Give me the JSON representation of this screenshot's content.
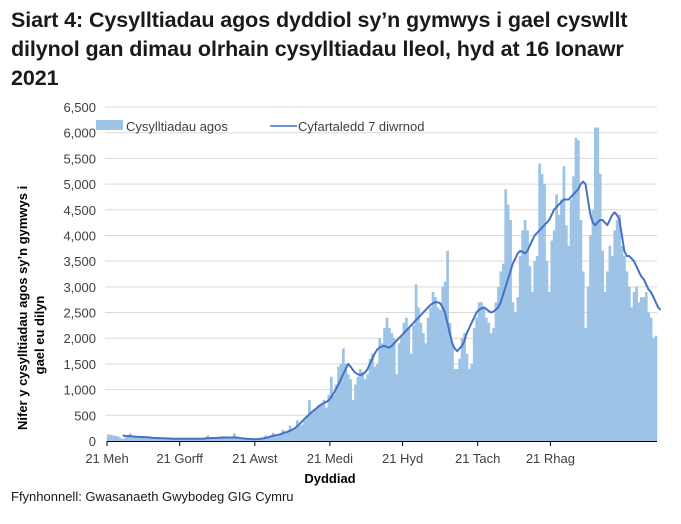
{
  "title": "Siart 4: Cysylltiadau agos dyddiol sy’n gymwys i gael cyswllt dilynol gan dimau olrhain cysylltiadau lleol, hyd at 16 Ionawr 2021",
  "source": "Ffynhonnell: Gwasanaeth Gwybodeg GIG Cymru",
  "colors": {
    "bars": "#9dc3e6",
    "line": "#4472c4",
    "grid": "#d9d9d9",
    "axis": "#000000"
  },
  "chart_data": {
    "type": "bar",
    "title": "Siart 4: Cysylltiadau agos dyddiol sy’n gymwys i gael cyswllt dilynol gan dimau olrhain cysylltiadau lleol, hyd at 16 Ionawr 2021",
    "xlabel": "Dyddiad",
    "ylabel": "Nifer y cysylltiadau agos sy’n gymwys i gael eu dilyn",
    "ylim": [
      0,
      6500
    ],
    "yticks": [
      0,
      500,
      1000,
      1500,
      2000,
      2500,
      3000,
      3500,
      4000,
      4500,
      5000,
      5500,
      6000,
      6500
    ],
    "ytick_labels": [
      "0",
      "500",
      "1,000",
      "1,500",
      "2,000",
      "2,500",
      "3,000",
      "3,500",
      "4,000",
      "4,500",
      "5,000",
      "5,500",
      "6,000",
      "6,500"
    ],
    "xtick_labels": [
      "21 Meh",
      "21 Gorff",
      "21 Awst",
      "21 Medi",
      "21 Hyd",
      "21 Tach",
      "21 Rhag"
    ],
    "xtick_day_index": [
      0,
      30,
      61,
      92,
      122,
      153,
      183
    ],
    "x_start": "21 Meh 2020",
    "x_end": "16 Ion 2021",
    "grid": true,
    "legend_position": "top",
    "legend": [
      "Cysylltiadau agos",
      "Cyfartaledd 7 diwrnod"
    ],
    "series": [
      {
        "name": "Cysylltiadau agos",
        "type": "bar",
        "values": [
          130,
          120,
          110,
          100,
          90,
          60,
          40,
          70,
          80,
          150,
          90,
          80,
          70,
          75,
          80,
          70,
          70,
          60,
          50,
          60,
          55,
          50,
          50,
          45,
          50,
          45,
          45,
          40,
          45,
          40,
          40,
          40,
          45,
          40,
          45,
          40,
          40,
          45,
          40,
          50,
          45,
          110,
          60,
          50,
          50,
          50,
          70,
          90,
          60,
          50,
          50,
          80,
          150,
          60,
          45,
          40,
          40,
          35,
          30,
          30,
          30,
          30,
          40,
          45,
          60,
          110,
          80,
          90,
          160,
          110,
          100,
          140,
          220,
          150,
          180,
          300,
          200,
          250,
          400,
          300,
          320,
          400,
          500,
          800,
          550,
          600,
          650,
          700,
          700,
          800,
          650,
          900,
          1250,
          900,
          1100,
          1450,
          1500,
          1800,
          1500,
          1300,
          1200,
          800,
          1100,
          1250,
          1400,
          1350,
          1200,
          1300,
          1600,
          1700,
          1450,
          1500,
          2000,
          1900,
          2200,
          2400,
          2200,
          2100,
          2000,
          1300,
          1900,
          2050,
          2300,
          2400,
          2200,
          1700,
          2250,
          3050,
          2600,
          2300,
          2100,
          1900,
          2400,
          2600,
          2900,
          2800,
          2600,
          2550,
          3000,
          3100,
          3700,
          2300,
          1900,
          1400,
          1400,
          1600,
          2000,
          2100,
          1700,
          1400,
          1500,
          2200,
          2400,
          2700,
          2700,
          2600,
          2400,
          2300,
          2100,
          2200,
          2700,
          3000,
          3300,
          3450,
          4900,
          4600,
          4300,
          2700,
          2500,
          2800,
          3600,
          4100,
          4300,
          4100,
          3400,
          2900,
          3500,
          3600,
          5400,
          5200,
          5000,
          3500,
          2900,
          3900,
          4100,
          4800,
          4400,
          4700,
          5350,
          4200,
          3800,
          4700,
          5150,
          5900,
          5850,
          4300,
          3300,
          2200,
          3000,
          4000,
          4500,
          6100,
          6100,
          5200,
          3700,
          2900,
          3300,
          3800,
          3600,
          4100,
          4300,
          4400,
          3800,
          3600,
          3300,
          3000,
          2600,
          2900,
          3000,
          2700,
          2800,
          2800,
          2900,
          2500,
          2400,
          2000,
          2050
        ],
        "color": "#9dc3e6"
      },
      {
        "name": "Cyfartaledd 7 diwrnod",
        "type": "line",
        "values": [
          null,
          null,
          null,
          null,
          null,
          null,
          110,
          100,
          95,
          95,
          90,
          85,
          80,
          80,
          78,
          75,
          73,
          70,
          65,
          60,
          58,
          55,
          54,
          52,
          50,
          48,
          46,
          45,
          44,
          43,
          42,
          42,
          42,
          42,
          42,
          42,
          42,
          42,
          43,
          45,
          50,
          55,
          57,
          58,
          58,
          60,
          65,
          68,
          70,
          68,
          66,
          68,
          70,
          68,
          60,
          55,
          50,
          45,
          40,
          38,
          36,
          36,
          38,
          42,
          50,
          60,
          70,
          85,
          100,
          110,
          120,
          130,
          150,
          165,
          180,
          200,
          220,
          250,
          290,
          330,
          380,
          430,
          470,
          520,
          560,
          600,
          640,
          680,
          710,
          740,
          760,
          790,
          850,
          930,
          1010,
          1100,
          1200,
          1300,
          1400,
          1500,
          1450,
          1380,
          1330,
          1300,
          1280,
          1300,
          1330,
          1400,
          1500,
          1600,
          1700,
          1780,
          1820,
          1840,
          1850,
          1830,
          1820,
          1850,
          1900,
          1950,
          2000,
          2050,
          2100,
          2150,
          2200,
          2250,
          2300,
          2350,
          2400,
          2450,
          2500,
          2550,
          2600,
          2650,
          2680,
          2700,
          2700,
          2680,
          2600,
          2500,
          2300,
          2100,
          1900,
          1800,
          1750,
          1800,
          1850,
          1950,
          2100,
          2200,
          2300,
          2400,
          2500,
          2550,
          2580,
          2600,
          2570,
          2530,
          2500,
          2520,
          2560,
          2600,
          2700,
          2850,
          3000,
          3150,
          3300,
          3450,
          3550,
          3650,
          3700,
          3680,
          3650,
          3700,
          3800,
          3900,
          4000,
          4050,
          4100,
          4150,
          4200,
          4250,
          4300,
          4400,
          4500,
          4550,
          4600,
          4650,
          4700,
          4700,
          4700,
          4750,
          4800,
          4850,
          4900,
          5000,
          5050,
          5000,
          4700,
          4400,
          4250,
          4200,
          4250,
          4300,
          4300,
          4250,
          4200,
          4300,
          4400,
          4450,
          4400,
          4300,
          4000,
          3700,
          3600,
          3600,
          3550,
          3500,
          3400,
          3300,
          3200,
          3150,
          3050,
          2950,
          2900,
          2800,
          2700,
          2600,
          2550
        ]
      }
    ]
  }
}
